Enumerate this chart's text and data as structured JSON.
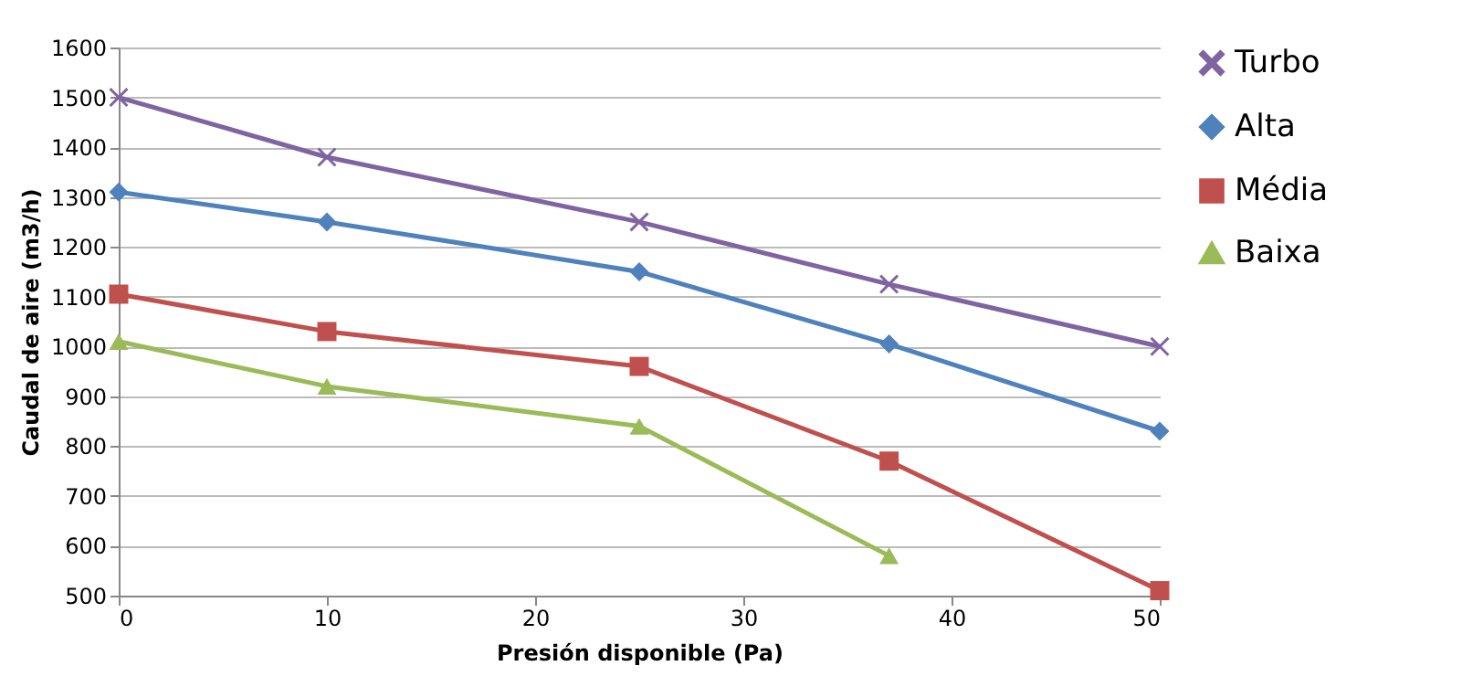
{
  "chart_data": {
    "type": "line",
    "xlabel": "Presión disponible (Pa)",
    "ylabel": "Caudal de aire (m3/h)",
    "x": [
      0,
      10,
      25,
      37,
      50
    ],
    "series": [
      {
        "name": "Turbo",
        "color": "#8064a2",
        "marker": "cross",
        "values": [
          1500,
          1380,
          1250,
          1125,
          1000
        ]
      },
      {
        "name": "Alta",
        "color": "#4f81bd",
        "marker": "diamond",
        "values": [
          1310,
          1250,
          1150,
          1005,
          830
        ]
      },
      {
        "name": "Média",
        "color": "#c0504d",
        "marker": "square",
        "values": [
          1105,
          1030,
          960,
          770,
          510
        ]
      },
      {
        "name": "Baixa",
        "color": "#9bbb59",
        "marker": "triangle",
        "values": [
          1010,
          920,
          840,
          580,
          null
        ]
      }
    ],
    "xlim": [
      0,
      50
    ],
    "xticks": [
      0,
      10,
      20,
      30,
      40,
      50
    ],
    "ylim": [
      500,
      1600
    ],
    "yticks": [
      500,
      600,
      700,
      800,
      900,
      1000,
      1100,
      1200,
      1300,
      1400,
      1500,
      1600
    ],
    "grid": "y",
    "legend": "right",
    "line_style": "solid"
  }
}
